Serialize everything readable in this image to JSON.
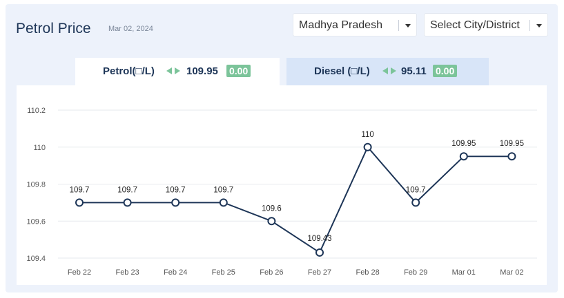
{
  "header": {
    "title": "Petrol Price",
    "date": "Mar 02, 2024"
  },
  "filters": {
    "state": "Madhya Pradesh",
    "city": "Select City/District"
  },
  "tabs": [
    {
      "label": "Petrol(□/L)",
      "price": "109.95",
      "change": "0.00",
      "active": true
    },
    {
      "label": "Diesel (□/L)",
      "price": "95.11",
      "change": "0.00",
      "active": false
    }
  ],
  "colors": {
    "line": "#1d3557",
    "change_badge": "#7cc49a",
    "arrows": "#7cc49a",
    "active_tab": "#ffffff",
    "inactive_tab": "#d8e5f8",
    "background": "#edf2fb"
  },
  "icons": {
    "caret": "chevron-down-icon",
    "arrows": "left-right-arrows-icon"
  },
  "chart_data": {
    "type": "line",
    "categories": [
      "Feb 22",
      "Feb 23",
      "Feb 24",
      "Feb 25",
      "Feb 26",
      "Feb 27",
      "Feb 28",
      "Feb 29",
      "Mar 01",
      "Mar 02"
    ],
    "series": [
      {
        "values": [
          109.7,
          109.7,
          109.7,
          109.7,
          109.6,
          109.43,
          110,
          109.7,
          109.95,
          109.95
        ],
        "labels": [
          "109.7",
          "109.7",
          "109.7",
          "109.7",
          "109.6",
          "109.43",
          "110",
          "109.7",
          "109.95",
          "109.95"
        ]
      }
    ],
    "ylim": [
      109.4,
      110.2
    ],
    "yticks": [
      "109.4",
      "109.6",
      "109.8",
      "110",
      "110.2"
    ],
    "grid": true,
    "title": "",
    "xlabel": "",
    "ylabel": ""
  }
}
